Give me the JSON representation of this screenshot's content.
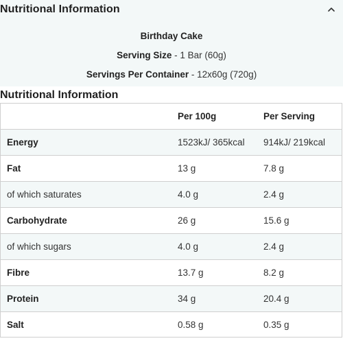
{
  "accordion": {
    "title": "Nutritional Information"
  },
  "summary": {
    "product_name": "Birthday Cake",
    "serving_size_label": "Serving Size",
    "serving_size_value": " - 1 Bar (60g)",
    "servings_label": "Servings Per Container",
    "servings_value": " - 12x60g (720g)"
  },
  "section": {
    "title": "Nutritional Information"
  },
  "table": {
    "headers": [
      "",
      "Per 100g",
      "Per Serving"
    ],
    "rows": [
      {
        "name": "Energy",
        "per100": "1523kJ/ 365kcal",
        "serving": "914kJ/ 219kcal"
      },
      {
        "name": "Fat",
        "per100": "13 g",
        "serving": "7.8 g"
      },
      {
        "name": "of which saturates",
        "per100": "4.0 g",
        "serving": "2.4 g"
      },
      {
        "name": "Carbohydrate",
        "per100": "26 g",
        "serving": "15.6 g"
      },
      {
        "name": "of which sugars",
        "per100": "4.0 g",
        "serving": "2.4 g"
      },
      {
        "name": "Fibre",
        "per100": "13.7 g",
        "serving": "8.2 g"
      },
      {
        "name": "Protein",
        "per100": "34 g",
        "serving": "20.4 g"
      },
      {
        "name": "Salt",
        "per100": "0.58 g",
        "serving": "0.35 g"
      }
    ]
  },
  "colors": {
    "panel_background": "#f3f8f8",
    "border": "#cfcfcf",
    "text": "#1f1f1f"
  },
  "icons": {
    "collapse": "chevron-up-icon"
  }
}
